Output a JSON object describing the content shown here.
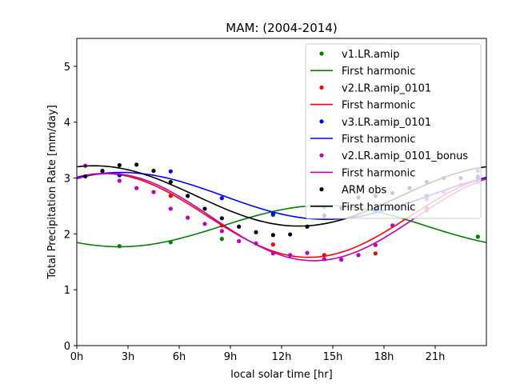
{
  "chart_data": {
    "type": "scatter",
    "title": "MAM: (2004-2014)",
    "xlabel": "local solar time [hr]",
    "ylabel": "Total Precipitation Rate [mm/day]",
    "xlim": [
      0,
      24
    ],
    "ylim": [
      0,
      5.5
    ],
    "xticks": [
      0,
      3,
      6,
      9,
      12,
      15,
      18,
      21
    ],
    "xtick_labels": [
      "0h",
      "3h",
      "6h",
      "9h",
      "12h",
      "15h",
      "18h",
      "21h"
    ],
    "yticks": [
      0,
      1,
      2,
      3,
      4,
      5
    ],
    "ytick_labels": [
      "0",
      "1",
      "2",
      "3",
      "4",
      "5"
    ],
    "legend_position": "top-right",
    "fit_note": "First harmonic",
    "series": [
      {
        "name": "v1.LR.amip",
        "color": "#008000",
        "fit_label": "First harmonic",
        "x": [
          2.5,
          5.5,
          8.5,
          11.5,
          14.5,
          17.5,
          20.5,
          23.5
        ],
        "y": [
          1.78,
          1.85,
          1.91,
          2.34,
          2.48,
          2.44,
          2.42,
          1.95
        ],
        "fit": {
          "mean": 2.14,
          "amp": 0.37,
          "phase": 14.5
        }
      },
      {
        "name": "v2.LR.amip_0101",
        "color": "#ff0000",
        "fit_label": "First harmonic",
        "x": [
          0.5,
          2.5,
          5.5,
          8.5,
          11.5,
          14.5,
          17.5,
          20.5,
          23.5
        ],
        "y": [
          3.22,
          3.05,
          2.68,
          2.15,
          1.81,
          1.62,
          1.65,
          2.47,
          2.93
        ],
        "fit": {
          "mean": 2.33,
          "amp": 0.75,
          "phase": 1.6
        }
      },
      {
        "name": "v3.LR.amip_0101",
        "color": "#0000ff",
        "fit_label": "First harmonic",
        "x": [
          2.5,
          5.5,
          8.5,
          11.5,
          14.5,
          17.5,
          20.5,
          23.5
        ],
        "y": [
          3.05,
          3.12,
          2.64,
          2.36,
          2.32,
          2.42,
          2.68,
          3.03
        ],
        "fit": {
          "mean": 2.68,
          "amp": 0.42,
          "phase": 2.6
        }
      },
      {
        "name": "v2.LR.amip_0101_bonus",
        "color": "#bf00bf",
        "fit_label": "First harmonic",
        "x": [
          0.5,
          1.5,
          2.5,
          3.5,
          4.5,
          5.5,
          6.5,
          7.5,
          8.5,
          9.5,
          10.5,
          11.5,
          12.5,
          13.5,
          14.5,
          15.5,
          16.5,
          17.5,
          18.5,
          19.5,
          20.5,
          21.5,
          22.5,
          23.5
        ],
        "y": [
          3.22,
          3.12,
          2.95,
          2.82,
          2.75,
          2.45,
          2.29,
          2.18,
          2.05,
          1.87,
          1.83,
          1.65,
          1.62,
          1.66,
          1.55,
          1.54,
          1.62,
          1.8,
          2.15,
          2.45,
          2.62,
          2.75,
          2.88,
          3.13
        ],
        "fit": {
          "mean": 2.3,
          "amp": 0.78,
          "phase": 1.9
        }
      },
      {
        "name": "ARM obs",
        "color": "#000000",
        "fit_label": "First harmonic",
        "x": [
          0.5,
          1.5,
          2.5,
          3.5,
          4.5,
          5.5,
          6.5,
          7.5,
          8.5,
          9.5,
          10.5,
          11.5,
          12.5,
          13.5,
          14.5,
          15.5,
          16.5,
          17.5,
          18.5,
          19.5,
          20.5,
          21.5,
          22.5,
          23.5
        ],
        "y": [
          3.03,
          3.13,
          3.23,
          3.24,
          3.13,
          2.93,
          2.68,
          2.45,
          2.28,
          2.13,
          2.03,
          1.98,
          1.99,
          2.13,
          2.33,
          2.46,
          2.65,
          2.68,
          2.73,
          2.82,
          2.93,
          3.0,
          3.0,
          3.0
        ],
        "fit": {
          "mean": 2.68,
          "amp": 0.54,
          "phase": 1.0
        }
      }
    ]
  }
}
